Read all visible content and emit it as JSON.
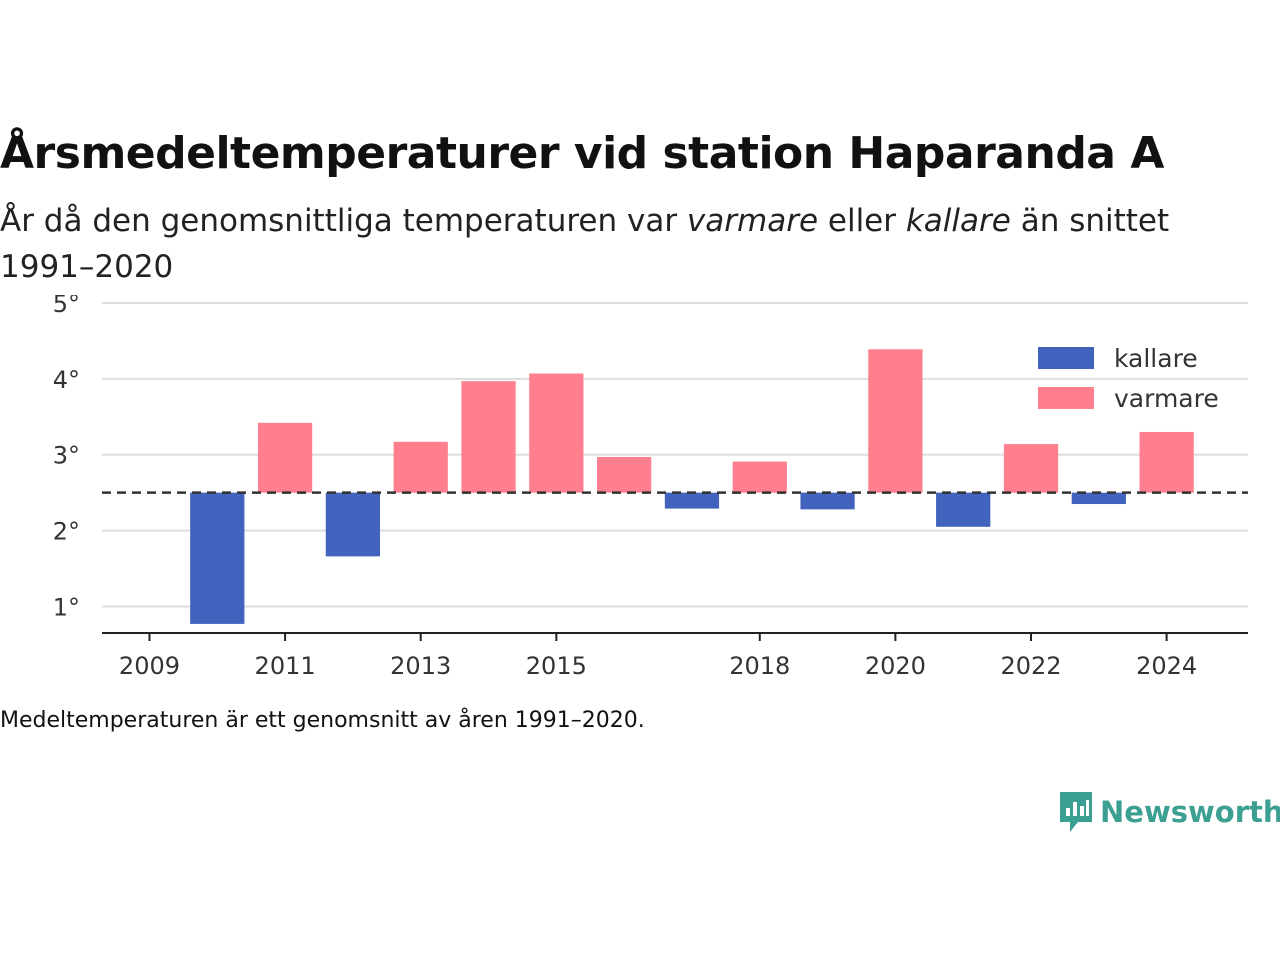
{
  "title": "Årsmedeltemperaturer vid station Haparanda A",
  "subtitle": {
    "part1": "År då den genomsnittliga temperaturen var ",
    "em1": "varmare",
    "part2": " eller ",
    "em2": "kallare",
    "part3": " än snittet 1991–2020"
  },
  "footnote": "Medeltemperaturen är ett genomsnitt av åren 1991–2020.",
  "logo": {
    "text": "Newsworthy",
    "icon": "newsworthy-chart-bubble-icon"
  },
  "colors": {
    "kallare": "#4263bd",
    "varmare": "#ff7f8e",
    "text": "#333333",
    "grid": "#dddddd",
    "accent": "#3b9f92"
  },
  "chart_data": {
    "type": "bar",
    "baseline": 2.5,
    "baseline_style": "dashed",
    "ylim": [
      0.65,
      5
    ],
    "yticks": [
      1,
      2,
      3,
      4,
      5
    ],
    "ytick_labels": [
      "1°",
      "2°",
      "3°",
      "4°",
      "5°"
    ],
    "xlim": [
      2008.3,
      2025.2
    ],
    "xticks": [
      2009,
      2011,
      2013,
      2015,
      2018,
      2020,
      2022,
      2024
    ],
    "xtick_labels": [
      "2009",
      "2011",
      "2013",
      "2015",
      "2018",
      "2020",
      "2022",
      "2024"
    ],
    "grid": true,
    "legend_position": "top-right",
    "series": [
      {
        "name": "kallare",
        "color": "#4263bd"
      },
      {
        "name": "varmare",
        "color": "#ff7f8e"
      }
    ],
    "data": [
      {
        "x": 2010,
        "value": 0.77,
        "series": "kallare"
      },
      {
        "x": 2011,
        "value": 3.42,
        "series": "varmare"
      },
      {
        "x": 2012,
        "value": 1.66,
        "series": "kallare"
      },
      {
        "x": 2013,
        "value": 3.17,
        "series": "varmare"
      },
      {
        "x": 2014,
        "value": 3.97,
        "series": "varmare"
      },
      {
        "x": 2015,
        "value": 4.07,
        "series": "varmare"
      },
      {
        "x": 2016,
        "value": 2.97,
        "series": "varmare"
      },
      {
        "x": 2017,
        "value": 2.29,
        "series": "kallare"
      },
      {
        "x": 2018,
        "value": 2.91,
        "series": "varmare"
      },
      {
        "x": 2019,
        "value": 2.28,
        "series": "kallare"
      },
      {
        "x": 2020,
        "value": 4.39,
        "series": "varmare"
      },
      {
        "x": 2021,
        "value": 2.05,
        "series": "kallare"
      },
      {
        "x": 2022,
        "value": 3.14,
        "series": "varmare"
      },
      {
        "x": 2023,
        "value": 2.35,
        "series": "kallare"
      },
      {
        "x": 2024,
        "value": 3.3,
        "series": "varmare"
      }
    ]
  }
}
